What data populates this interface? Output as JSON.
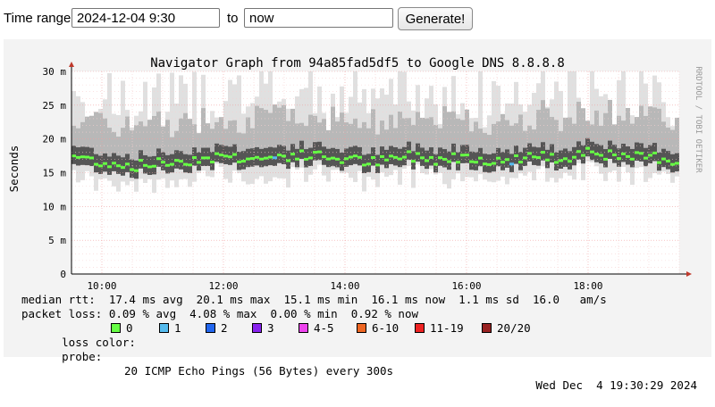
{
  "toolbar": {
    "time_range_label": "Time range:",
    "start_value": "2024-12-04 9:30",
    "to_label": "to",
    "end_value": "now",
    "generate_label": "Generate!"
  },
  "graph": {
    "title": "Navigator Graph from 94a85fad5df5 to Google DNS 8.8.8.8",
    "y_axis_label": "Seconds",
    "watermark": "RRDTOOL / TOBI OETIKER",
    "y_ticks": [
      "0",
      "5 m",
      "10 m",
      "15 m",
      "20 m",
      "25 m",
      "30 m"
    ],
    "x_ticks": [
      "10:00",
      "12:00",
      "14:00",
      "16:00",
      "18:00"
    ]
  },
  "stats": {
    "median_rtt": "median rtt:  17.4 ms avg  20.1 ms max  15.1 ms min  16.1 ms now  1.1 ms sd  16.0   am/s",
    "packet_loss": "packet loss: 0.09 % avg  4.08 % max  0.00 % min  0.92 % now",
    "loss_color_label": "loss color:",
    "probe_label": "probe:",
    "probe_text": "20 ICMP Echo Pings (56 Bytes) every 300s",
    "timestamp": "Wed Dec  4 19:30:29 2024"
  },
  "loss_legend": [
    {
      "label": "0",
      "color": "#66ff44"
    },
    {
      "label": "1",
      "color": "#55bbee"
    },
    {
      "label": "2",
      "color": "#2266ee"
    },
    {
      "label": "3",
      "color": "#8822ee"
    },
    {
      "label": "4-5",
      "color": "#ee44ee"
    },
    {
      "label": "6-10",
      "color": "#ee6622"
    },
    {
      "label": "11-19",
      "color": "#ee2222"
    },
    {
      "label": "20/20",
      "color": "#992222"
    }
  ],
  "chart_data": {
    "type": "line",
    "title": "Navigator Graph from 94a85fad5df5 to Google DNS 8.8.8.8",
    "ylabel": "Seconds",
    "ylim": [
      0,
      30
    ],
    "y_unit": "ms",
    "x_range": [
      "09:30",
      "19:30"
    ],
    "x_ticks": [
      "10:00",
      "12:00",
      "14:00",
      "16:00",
      "18:00"
    ],
    "series": [
      {
        "name": "median rtt",
        "x": [
          "09:30",
          "10:00",
          "10:30",
          "11:00",
          "11:30",
          "12:00",
          "12:30",
          "13:00",
          "13:30",
          "14:00",
          "14:30",
          "15:00",
          "15:30",
          "16:00",
          "16:30",
          "17:00",
          "17:30",
          "18:00",
          "18:30",
          "19:00",
          "19:30"
        ],
        "values": [
          17.5,
          16.5,
          16.0,
          16.5,
          17.0,
          17.5,
          17.0,
          17.5,
          17.5,
          17.0,
          16.5,
          17.5,
          17.0,
          17.5,
          16.5,
          17.5,
          17.0,
          18.5,
          17.0,
          17.5,
          16.5
        ]
      }
    ],
    "smoke_range_ms": [
      13,
      30
    ],
    "grid": true
  }
}
